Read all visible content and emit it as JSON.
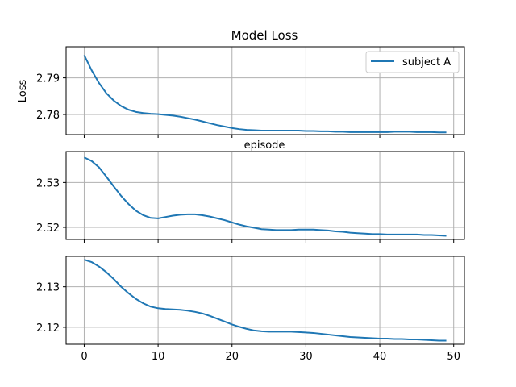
{
  "chart_data": {
    "type": "line",
    "title": "Model Loss",
    "ylabel": "Loss",
    "xlabel": "episode",
    "legend": {
      "entries": [
        "subject A"
      ],
      "placement": "top-right"
    },
    "grid": true,
    "line_color": "#1f77b4",
    "x": {
      "min": 0,
      "max": 49,
      "lim": [
        -2.45,
        51.45
      ],
      "ticks": [
        0,
        10,
        20,
        30,
        40,
        50
      ]
    },
    "panels": [
      {
        "series_name": "subject A",
        "ylim": [
          2.7745,
          2.7985
        ],
        "yticks": [
          2.78,
          2.79
        ],
        "ytick_labels": [
          "2.78",
          "2.79"
        ],
        "values": [
          2.7962,
          2.7921,
          2.7886,
          2.7858,
          2.7838,
          2.7823,
          2.7813,
          2.7807,
          2.7804,
          2.7802,
          2.7801,
          2.7799,
          2.7797,
          2.7794,
          2.779,
          2.7786,
          2.7781,
          2.7776,
          2.7771,
          2.7767,
          2.7763,
          2.776,
          2.7758,
          2.7757,
          2.7756,
          2.7756,
          2.7756,
          2.7756,
          2.7756,
          2.7756,
          2.7755,
          2.7755,
          2.7754,
          2.7754,
          2.7753,
          2.7753,
          2.7752,
          2.7752,
          2.7752,
          2.7752,
          2.7752,
          2.7752,
          2.7753,
          2.7753,
          2.7753,
          2.7752,
          2.7752,
          2.7752,
          2.7751,
          2.7751
        ]
      },
      {
        "series_name": "subject A",
        "ylim": [
          2.5173,
          2.5369
        ],
        "yticks": [
          2.52,
          2.53
        ],
        "ytick_labels": [
          "2.52",
          "2.53"
        ],
        "values": [
          2.5356,
          2.5348,
          2.5334,
          2.5313,
          2.5291,
          2.527,
          2.5252,
          2.5237,
          2.5227,
          2.5221,
          2.522,
          2.5223,
          2.5226,
          2.5228,
          2.5229,
          2.5229,
          2.5227,
          2.5224,
          2.522,
          2.5216,
          2.5211,
          2.5206,
          2.5202,
          2.5199,
          2.5196,
          2.5195,
          2.5194,
          2.5194,
          2.5194,
          2.5195,
          2.5195,
          2.5195,
          2.5194,
          2.5193,
          2.5191,
          2.519,
          2.5188,
          2.5187,
          2.5186,
          2.5185,
          2.5185,
          2.5184,
          2.5184,
          2.5184,
          2.5184,
          2.5184,
          2.5183,
          2.5183,
          2.5182,
          2.5181
        ]
      },
      {
        "series_name": "subject A",
        "ylim": [
          2.1158,
          2.1375
        ],
        "yticks": [
          2.12,
          2.13
        ],
        "ytick_labels": [
          "2.12",
          "2.13"
        ],
        "values": [
          2.1367,
          2.1361,
          2.135,
          2.1336,
          2.1319,
          2.13,
          2.1284,
          2.127,
          2.1259,
          2.1251,
          2.1247,
          2.1245,
          2.1244,
          2.1243,
          2.1241,
          2.1238,
          2.1234,
          2.1228,
          2.1221,
          2.1214,
          2.1207,
          2.1201,
          2.1196,
          2.1192,
          2.119,
          2.1189,
          2.1189,
          2.1189,
          2.1189,
          2.1188,
          2.1187,
          2.1186,
          2.1184,
          2.1182,
          2.118,
          2.1178,
          2.1176,
          2.1175,
          2.1174,
          2.1173,
          2.1172,
          2.1172,
          2.1171,
          2.1171,
          2.117,
          2.117,
          2.1169,
          2.1168,
          2.1167,
          2.1167
        ]
      }
    ]
  }
}
